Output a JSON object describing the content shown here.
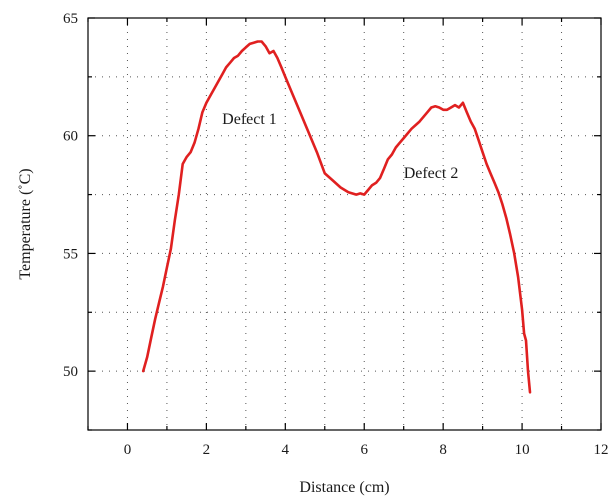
{
  "chart_data": {
    "type": "line",
    "title": "",
    "xlabel": "Distance (cm)",
    "ylabel": "Temperature (˚C)",
    "xlim": [
      -1,
      12
    ],
    "ylim": [
      47.5,
      65
    ],
    "xticks": [
      0,
      2,
      4,
      6,
      8,
      10,
      12
    ],
    "yticks": [
      50,
      55,
      60,
      65
    ],
    "x_minor_step": 1,
    "y_minor_step": 2.5,
    "grid": true,
    "legend": "none",
    "line_color": "#e02020",
    "series": [
      {
        "x": [
          0.4,
          0.5,
          0.6,
          0.7,
          0.8,
          0.9,
          1.0,
          1.1,
          1.2,
          1.3,
          1.4,
          1.5,
          1.6,
          1.7,
          1.8,
          1.9,
          2.0,
          2.1,
          2.2,
          2.3,
          2.4,
          2.5,
          2.6,
          2.7,
          2.8,
          2.9,
          3.0,
          3.1,
          3.2,
          3.3,
          3.4,
          3.5,
          3.6,
          3.7,
          3.8,
          3.9,
          4.0,
          4.2,
          4.4,
          4.6,
          4.8,
          5.0,
          5.2,
          5.4,
          5.6,
          5.8,
          5.9,
          6.0,
          6.1,
          6.2,
          6.3,
          6.4,
          6.5,
          6.6,
          6.7,
          6.8,
          6.9,
          7.0,
          7.2,
          7.4,
          7.6,
          7.7,
          7.8,
          7.9,
          8.0,
          8.1,
          8.2,
          8.3,
          8.4,
          8.5,
          8.6,
          8.7,
          8.8,
          8.9,
          9.0,
          9.1,
          9.2,
          9.3,
          9.4,
          9.5,
          9.6,
          9.7,
          9.8,
          9.9,
          10.0,
          10.05,
          10.1,
          10.15,
          10.2
        ],
        "y": [
          50.0,
          50.6,
          51.4,
          52.2,
          52.9,
          53.6,
          54.4,
          55.2,
          56.4,
          57.5,
          58.8,
          59.1,
          59.3,
          59.7,
          60.3,
          61.0,
          61.4,
          61.7,
          62.0,
          62.3,
          62.6,
          62.9,
          63.1,
          63.3,
          63.4,
          63.6,
          63.75,
          63.9,
          63.95,
          64.0,
          64.0,
          63.8,
          63.5,
          63.6,
          63.3,
          62.9,
          62.5,
          61.7,
          60.9,
          60.1,
          59.3,
          58.4,
          58.1,
          57.8,
          57.6,
          57.5,
          57.55,
          57.5,
          57.7,
          57.9,
          58.0,
          58.2,
          58.6,
          59.0,
          59.2,
          59.5,
          59.7,
          59.9,
          60.3,
          60.6,
          61.0,
          61.2,
          61.25,
          61.2,
          61.1,
          61.1,
          61.2,
          61.3,
          61.2,
          61.4,
          61.0,
          60.6,
          60.3,
          59.8,
          59.3,
          58.8,
          58.4,
          58.0,
          57.6,
          57.1,
          56.5,
          55.8,
          55.0,
          54.0,
          52.6,
          51.6,
          51.3,
          50.0,
          49.1
        ]
      }
    ],
    "annotations": [
      {
        "text": "Defect 1",
        "x": 2.4,
        "y": 60.5
      },
      {
        "text": "Defect 2",
        "x": 7.0,
        "y": 58.2
      }
    ]
  }
}
